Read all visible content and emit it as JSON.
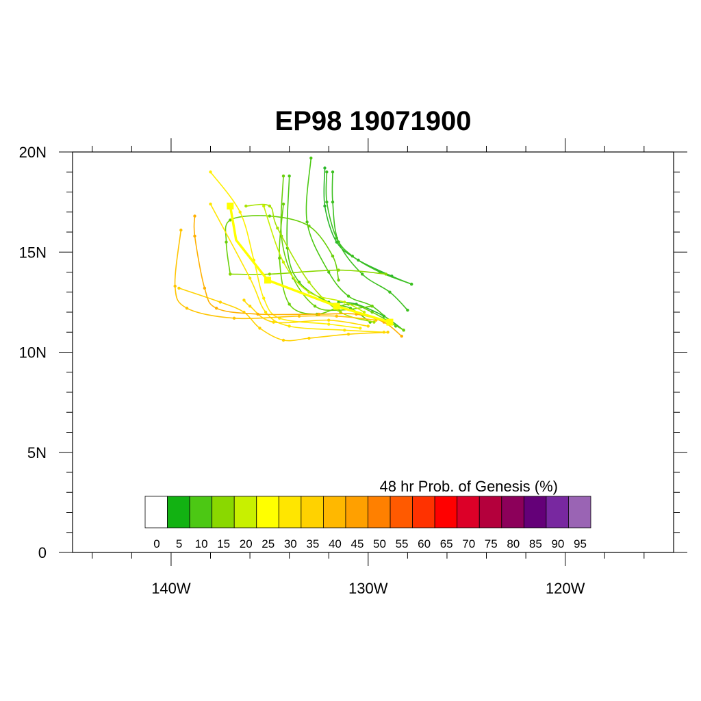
{
  "chart_data": {
    "type": "line",
    "title": "EP98 19071900",
    "x_axis": {
      "min": -145,
      "max": -114.5,
      "major_ticks": [
        -140,
        -130,
        -120
      ],
      "tick_labels": [
        "140W",
        "130W",
        "120W"
      ],
      "minor_step": 2
    },
    "y_axis": {
      "min": 0,
      "max": 20,
      "major_ticks": [
        0,
        5,
        10,
        15,
        20
      ],
      "tick_labels": [
        "0",
        "5N",
        "10N",
        "15N",
        "20N"
      ],
      "minor_step": 1
    },
    "grid": false,
    "colorbar": {
      "title": "48 hr Prob. of Genesis (%)",
      "labels": [
        "0",
        "5",
        "10",
        "15",
        "20",
        "25",
        "30",
        "35",
        "40",
        "45",
        "50",
        "55",
        "60",
        "65",
        "70",
        "75",
        "80",
        "85",
        "90",
        "95"
      ],
      "colors": [
        "#ffffff",
        "#12b212",
        "#4cc814",
        "#8ad800",
        "#c8f000",
        "#ffff00",
        "#ffe600",
        "#ffd200",
        "#ffb800",
        "#ffa000",
        "#ff8000",
        "#ff5a00",
        "#ff3200",
        "#ff0000",
        "#dc0028",
        "#b4003c",
        "#8c005a",
        "#640078",
        "#7828a0",
        "#9a64b4"
      ]
    },
    "mean_track": {
      "color": "#ffff00",
      "points": [
        [
          -128.9,
          11.5
        ],
        [
          -131.6,
          12.3
        ],
        [
          -135.1,
          13.6
        ],
        [
          -136.7,
          15.6
        ],
        [
          -137.0,
          17.3
        ]
      ],
      "markers": [
        [
          -128.9,
          11.5
        ],
        [
          -131.6,
          12.3
        ],
        [
          -135.1,
          13.6
        ],
        [
          -137.0,
          17.3
        ]
      ]
    },
    "ensemble_tracks": [
      {
        "color": "#2bb82b",
        "points": [
          [
            -127.8,
            13.4
          ],
          [
            -128.8,
            13.8
          ],
          [
            -130.5,
            14.6
          ],
          [
            -131.6,
            15.5
          ],
          [
            -132.2,
            17.3
          ],
          [
            -132.2,
            19.2
          ]
        ]
      },
      {
        "color": "#2bb82b",
        "points": [
          [
            -128.2,
            11.1
          ],
          [
            -129.2,
            11.8
          ],
          [
            -130.6,
            12.4
          ],
          [
            -131.5,
            12.5
          ]
        ]
      },
      {
        "color": "#3cc020",
        "points": [
          [
            -127.8,
            13.4
          ],
          [
            -129.4,
            14.0
          ],
          [
            -130.8,
            14.8
          ],
          [
            -131.6,
            15.7
          ],
          [
            -132.1,
            17.5
          ],
          [
            -132.1,
            19.0
          ]
        ]
      },
      {
        "color": "#3cc020",
        "points": [
          [
            -128.0,
            12.1
          ],
          [
            -128.9,
            13.0
          ],
          [
            -130.3,
            13.9
          ],
          [
            -131.5,
            15.5
          ],
          [
            -131.8,
            17.5
          ],
          [
            -131.8,
            19.0
          ]
        ]
      },
      {
        "color": "#4cc814",
        "points": [
          [
            -128.6,
            11.3
          ],
          [
            -129.8,
            12.3
          ],
          [
            -131.0,
            12.8
          ],
          [
            -132.0,
            14.0
          ],
          [
            -133.1,
            16.5
          ],
          [
            -132.9,
            19.7
          ]
        ]
      },
      {
        "color": "#4cc814",
        "points": [
          [
            -129.9,
            11.5
          ],
          [
            -130.9,
            12.2
          ],
          [
            -132.0,
            12.5
          ],
          [
            -133.5,
            13.5
          ],
          [
            -134.1,
            15.2
          ],
          [
            -134.0,
            18.8
          ]
        ]
      },
      {
        "color": "#6ad00a",
        "points": [
          [
            -129.8,
            12.3
          ],
          [
            -131.5,
            12.1
          ],
          [
            -132.7,
            12.3
          ],
          [
            -133.8,
            13.7
          ],
          [
            -134.4,
            15.8
          ],
          [
            -134.3,
            18.8
          ]
        ]
      },
      {
        "color": "#6ad00a",
        "points": [
          [
            -128.2,
            11.1
          ],
          [
            -129.8,
            12.0
          ],
          [
            -131.0,
            12.4
          ],
          [
            -132.6,
            11.9
          ],
          [
            -134.0,
            12.4
          ],
          [
            -134.5,
            14.7
          ],
          [
            -134.3,
            17.4
          ]
        ]
      },
      {
        "color": "#6ad00a",
        "points": [
          [
            -131.5,
            13.6
          ],
          [
            -131.8,
            14.8
          ],
          [
            -133.0,
            16.3
          ],
          [
            -135.0,
            16.8
          ],
          [
            -137.0,
            16.6
          ],
          [
            -137.2,
            15.5
          ],
          [
            -137.0,
            13.9
          ]
        ]
      },
      {
        "color": "#8ad800",
        "points": [
          [
            -129.1,
            13.9
          ],
          [
            -131.5,
            14.1
          ],
          [
            -135.0,
            13.9
          ],
          [
            -137.0,
            13.9
          ]
        ]
      },
      {
        "color": "#a8e400",
        "points": [
          [
            -129.7,
            11.5
          ],
          [
            -131.4,
            12.0
          ],
          [
            -133.0,
            13.5
          ],
          [
            -134.6,
            16.2
          ],
          [
            -135.0,
            17.3
          ],
          [
            -136.2,
            17.3
          ]
        ]
      },
      {
        "color": "#c8f000",
        "points": [
          [
            -130.2,
            12.0
          ],
          [
            -131.2,
            12.5
          ],
          [
            -133.0,
            13.0
          ],
          [
            -134.3,
            14.5
          ],
          [
            -135.3,
            17.3
          ]
        ]
      },
      {
        "color": "#ffef00",
        "points": [
          [
            -130.4,
            11.2
          ],
          [
            -132.0,
            11.4
          ],
          [
            -134.5,
            11.7
          ],
          [
            -135.3,
            12.7
          ],
          [
            -135.8,
            14.6
          ],
          [
            -136.5,
            17.0
          ],
          [
            -138.0,
            19.0
          ]
        ]
      },
      {
        "color": "#ffe600",
        "points": [
          [
            -129.2,
            11.0
          ],
          [
            -131.2,
            11.1
          ],
          [
            -134.0,
            11.3
          ],
          [
            -135.2,
            12.0
          ],
          [
            -136.0,
            13.7
          ],
          [
            -138.0,
            17.4
          ]
        ]
      },
      {
        "color": "#ffda00",
        "points": [
          [
            -130.0,
            11.3
          ],
          [
            -132.0,
            11.6
          ],
          [
            -134.8,
            11.5
          ],
          [
            -136.0,
            12.3
          ],
          [
            -136.3,
            12.6
          ]
        ]
      },
      {
        "color": "#ffd200",
        "points": [
          [
            -129.0,
            11.0
          ],
          [
            -131.0,
            10.9
          ],
          [
            -133.0,
            10.7
          ],
          [
            -134.3,
            10.6
          ],
          [
            -135.5,
            11.2
          ],
          [
            -136.3,
            12.0
          ],
          [
            -137.5,
            12.5
          ],
          [
            -139.6,
            13.2
          ]
        ]
      },
      {
        "color": "#ffc400",
        "points": [
          [
            -129.6,
            11.6
          ],
          [
            -131.6,
            11.8
          ],
          [
            -133.5,
            11.8
          ],
          [
            -136.8,
            11.7
          ],
          [
            -139.2,
            12.2
          ],
          [
            -139.8,
            13.3
          ],
          [
            -139.5,
            16.1
          ]
        ]
      },
      {
        "color": "#ffb000",
        "points": [
          [
            -128.3,
            10.8
          ],
          [
            -129.2,
            11.5
          ],
          [
            -130.6,
            11.9
          ],
          [
            -132.5,
            11.9
          ],
          [
            -135.6,
            11.9
          ],
          [
            -137.7,
            12.2
          ],
          [
            -138.3,
            13.2
          ],
          [
            -138.8,
            15.8
          ],
          [
            -138.8,
            16.8
          ]
        ]
      }
    ]
  }
}
